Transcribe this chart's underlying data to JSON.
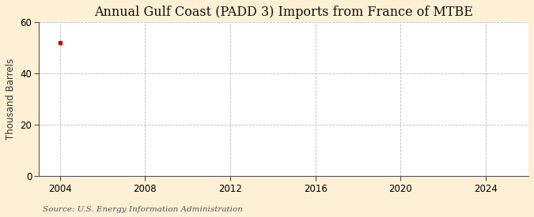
{
  "title": "Annual Gulf Coast (PADD 3) Imports from France of MTBE",
  "ylabel": "Thousand Barrels",
  "source": "Source: U.S. Energy Information Administration",
  "background_color": "#fdf0d5",
  "plot_background_color": "#ffffff",
  "data_x": [
    2004
  ],
  "data_y": [
    52
  ],
  "data_color": "#cc0000",
  "xlim": [
    2003,
    2026
  ],
  "ylim": [
    0,
    60
  ],
  "xticks": [
    2004,
    2008,
    2012,
    2016,
    2020,
    2024
  ],
  "yticks": [
    0,
    20,
    40,
    60
  ],
  "grid_color": "#bbbbbb",
  "title_fontsize": 11.5,
  "label_fontsize": 8.5,
  "tick_fontsize": 8.5,
  "source_fontsize": 7.5
}
